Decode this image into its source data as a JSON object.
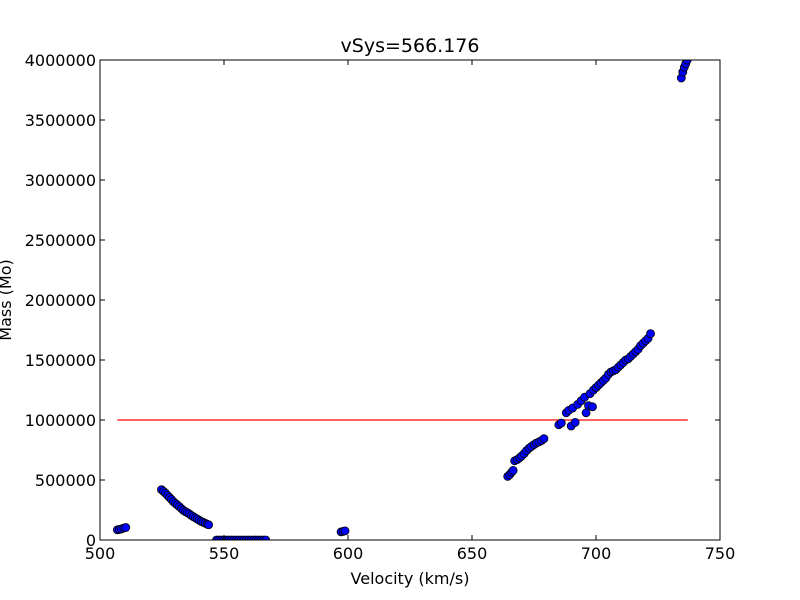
{
  "chart_data": {
    "type": "scatter",
    "title": "vSys=566.176",
    "xlabel": "Velocity (km/s)",
    "ylabel": "Mass (Mo)",
    "xlim": [
      500,
      750
    ],
    "ylim": [
      0,
      4000000
    ],
    "xticks": [
      "500",
      "550",
      "600",
      "650",
      "700",
      "750"
    ],
    "yticks": [
      "0",
      "500000",
      "1000000",
      "1500000",
      "2000000",
      "2500000",
      "3000000",
      "3500000",
      "4000000"
    ],
    "grid": false,
    "marker_color": "#0000ff",
    "marker_edge": "#000000",
    "line_color": "#ff0000",
    "threshold_line": {
      "x": [
        507,
        737
      ],
      "y": 1000000
    },
    "points": [
      [
        507.0,
        85000
      ],
      [
        507.8,
        88000
      ],
      [
        508.6,
        92000
      ],
      [
        509.6,
        100000
      ],
      [
        510.4,
        104000
      ],
      [
        524.8,
        420000
      ],
      [
        525.6,
        405000
      ],
      [
        526.4,
        390000
      ],
      [
        527.2,
        372000
      ],
      [
        528.0,
        355000
      ],
      [
        528.8,
        338000
      ],
      [
        529.6,
        320000
      ],
      [
        530.4,
        305000
      ],
      [
        531.2,
        292000
      ],
      [
        532.0,
        278000
      ],
      [
        532.8,
        262000
      ],
      [
        533.6,
        248000
      ],
      [
        534.4,
        236000
      ],
      [
        535.2,
        228000
      ],
      [
        536.0,
        218000
      ],
      [
        536.8,
        205000
      ],
      [
        537.6,
        195000
      ],
      [
        538.4,
        185000
      ],
      [
        539.2,
        175000
      ],
      [
        540.0,
        165000
      ],
      [
        540.8,
        155000
      ],
      [
        541.6,
        148000
      ],
      [
        542.4,
        140000
      ],
      [
        543.2,
        132000
      ],
      [
        543.8,
        127000
      ],
      [
        547.0,
        0
      ],
      [
        548.0,
        0
      ],
      [
        549.0,
        0
      ],
      [
        550.0,
        0
      ],
      [
        551.0,
        0
      ],
      [
        552.0,
        0
      ],
      [
        553.0,
        0
      ],
      [
        554.0,
        0
      ],
      [
        555.0,
        0
      ],
      [
        556.0,
        0
      ],
      [
        557.0,
        0
      ],
      [
        558.0,
        0
      ],
      [
        559.0,
        0
      ],
      [
        560.0,
        0
      ],
      [
        561.0,
        0
      ],
      [
        562.0,
        0
      ],
      [
        563.0,
        0
      ],
      [
        564.0,
        0
      ],
      [
        565.0,
        0
      ],
      [
        566.0,
        0
      ],
      [
        566.8,
        0
      ],
      [
        597.2,
        68000
      ],
      [
        598.0,
        72000
      ],
      [
        598.8,
        76000
      ],
      [
        664.4,
        530000
      ],
      [
        665.2,
        545000
      ],
      [
        666.0,
        565000
      ],
      [
        666.6,
        580000
      ],
      [
        667.2,
        660000
      ],
      [
        668.2,
        670000
      ],
      [
        669.2,
        685000
      ],
      [
        670.0,
        700000
      ],
      [
        671.0,
        720000
      ],
      [
        672.0,
        745000
      ],
      [
        673.0,
        765000
      ],
      [
        674.0,
        780000
      ],
      [
        675.0,
        795000
      ],
      [
        676.0,
        808000
      ],
      [
        677.0,
        818000
      ],
      [
        678.0,
        828000
      ],
      [
        679.0,
        845000
      ],
      [
        685.0,
        960000
      ],
      [
        686.0,
        975000
      ],
      [
        688.0,
        1060000
      ],
      [
        689.0,
        1080000
      ],
      [
        690.0,
        950000
      ],
      [
        690.6,
        1100000
      ],
      [
        691.6,
        980000
      ],
      [
        692.6,
        1130000
      ],
      [
        694.0,
        1160000
      ],
      [
        695.4,
        1190000
      ],
      [
        696.0,
        1060000
      ],
      [
        697.0,
        1120000
      ],
      [
        697.6,
        1220000
      ],
      [
        698.6,
        1110000
      ],
      [
        699.0,
        1250000
      ],
      [
        700.0,
        1270000
      ],
      [
        701.0,
        1290000
      ],
      [
        702.0,
        1310000
      ],
      [
        703.0,
        1330000
      ],
      [
        704.0,
        1350000
      ],
      [
        705.0,
        1380000
      ],
      [
        706.0,
        1400000
      ],
      [
        707.0,
        1410000
      ],
      [
        708.0,
        1420000
      ],
      [
        709.0,
        1440000
      ],
      [
        710.0,
        1460000
      ],
      [
        711.0,
        1480000
      ],
      [
        712.0,
        1500000
      ],
      [
        713.0,
        1510000
      ],
      [
        714.0,
        1530000
      ],
      [
        715.0,
        1550000
      ],
      [
        716.0,
        1570000
      ],
      [
        717.0,
        1590000
      ],
      [
        718.0,
        1620000
      ],
      [
        719.0,
        1640000
      ],
      [
        720.0,
        1660000
      ],
      [
        721.0,
        1680000
      ],
      [
        722.0,
        1720000
      ],
      [
        734.4,
        3850000
      ],
      [
        735.0,
        3900000
      ],
      [
        735.6,
        3940000
      ],
      [
        736.2,
        3970000
      ],
      [
        736.8,
        4000000
      ]
    ]
  }
}
